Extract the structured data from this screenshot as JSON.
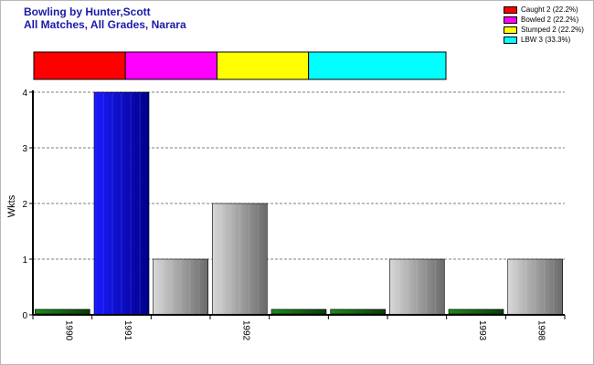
{
  "header": {
    "title": "Bowling by Hunter,Scott",
    "subtitle": "All Matches, All Grades, Narara"
  },
  "legend": {
    "items": [
      {
        "label": "Caught 2 (22.2%)",
        "color": "#ff0000"
      },
      {
        "label": "Bowled 2 (22.2%)",
        "color": "#ff00ff"
      },
      {
        "label": "Stumped 2 (22.2%)",
        "color": "#ffff00"
      },
      {
        "label": "LBW 3 (33.3%)",
        "color": "#00ffff"
      }
    ]
  },
  "chart_data": {
    "type": "bar",
    "title": "Bowling by Hunter,Scott",
    "subtitle": "All Matches, All Grades, Narara",
    "ylabel": "Wkts",
    "xlabel": "",
    "ylim": [
      0,
      4
    ],
    "yticks": [
      0,
      1,
      2,
      3,
      4
    ],
    "grid": true,
    "categories": [
      "1990",
      "1991",
      "",
      "1992",
      "",
      "",
      "",
      "1993",
      "1998"
    ],
    "values": [
      0,
      4,
      1,
      2,
      0,
      0,
      1,
      0,
      1
    ],
    "bar_styles": [
      "zero-green",
      "blue",
      "gray",
      "gray",
      "zero-green",
      "zero-green",
      "gray",
      "zero-green",
      "gray"
    ],
    "dismissal_breakdown": [
      {
        "type": "Caught",
        "count": 2,
        "percent": 22.2,
        "color": "#ff0000"
      },
      {
        "type": "Bowled",
        "count": 2,
        "percent": 22.2,
        "color": "#ff00ff"
      },
      {
        "type": "Stumped",
        "count": 2,
        "percent": 22.2,
        "color": "#ffff00"
      },
      {
        "type": "LBW",
        "count": 3,
        "percent": 33.3,
        "color": "#00ffff"
      }
    ]
  }
}
